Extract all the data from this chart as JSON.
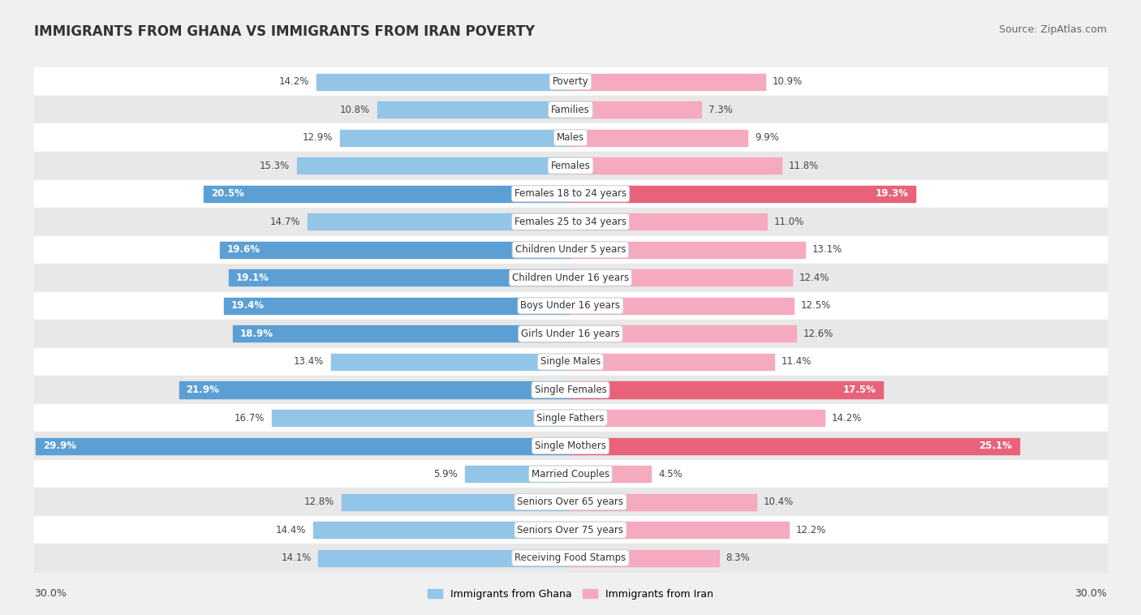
{
  "title": "IMMIGRANTS FROM GHANA VS IMMIGRANTS FROM IRAN POVERTY",
  "source": "Source: ZipAtlas.com",
  "categories": [
    "Poverty",
    "Families",
    "Males",
    "Females",
    "Females 18 to 24 years",
    "Females 25 to 34 years",
    "Children Under 5 years",
    "Children Under 16 years",
    "Boys Under 16 years",
    "Girls Under 16 years",
    "Single Males",
    "Single Females",
    "Single Fathers",
    "Single Mothers",
    "Married Couples",
    "Seniors Over 65 years",
    "Seniors Over 75 years",
    "Receiving Food Stamps"
  ],
  "ghana_values": [
    14.2,
    10.8,
    12.9,
    15.3,
    20.5,
    14.7,
    19.6,
    19.1,
    19.4,
    18.9,
    13.4,
    21.9,
    16.7,
    29.9,
    5.9,
    12.8,
    14.4,
    14.1
  ],
  "iran_values": [
    10.9,
    7.3,
    9.9,
    11.8,
    19.3,
    11.0,
    13.1,
    12.4,
    12.5,
    12.6,
    11.4,
    17.5,
    14.2,
    25.1,
    4.5,
    10.4,
    12.2,
    8.3
  ],
  "ghana_color_light": "#92C5E8",
  "ghana_color_dark": "#5B9FD4",
  "iran_color_light": "#F5AABF",
  "iran_color_dark": "#E8627A",
  "ghana_label": "Immigrants from Ghana",
  "iran_label": "Immigrants from Iran",
  "ghana_highlight_threshold": 17.0,
  "iran_highlight_threshold": 17.0,
  "max_value": 30.0,
  "row_colors": [
    "#ffffff",
    "#e8e8e8"
  ],
  "cat_label_fontsize": 8.5,
  "val_label_fontsize": 8.5,
  "title_fontsize": 12,
  "source_fontsize": 9,
  "legend_fontsize": 9,
  "bar_height": 0.58,
  "fig_bg": "#f0f0f0"
}
